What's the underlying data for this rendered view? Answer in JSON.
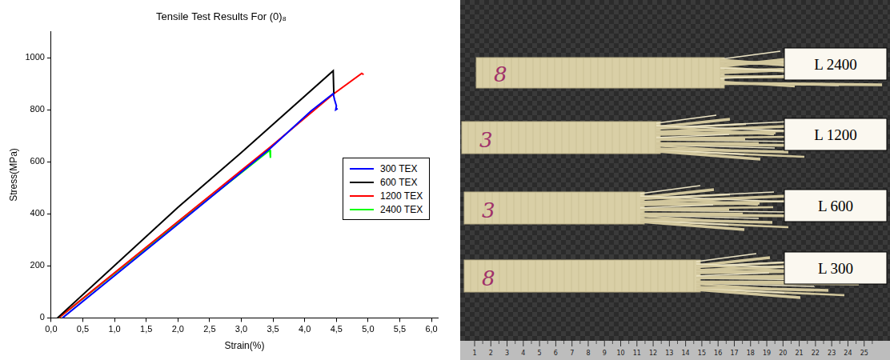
{
  "chart_data": {
    "type": "line",
    "title": "Tensile Test Results For (0)₈",
    "x_label": "Strain(%)",
    "y_label": "Stress(MPa)",
    "xlim": [
      0,
      6.1
    ],
    "ylim": [
      0,
      1100
    ],
    "xticks": [
      {
        "value": 0,
        "label": "0,0"
      },
      {
        "value": 0.5,
        "label": "0,5"
      },
      {
        "value": 1,
        "label": "1,0"
      },
      {
        "value": 1.5,
        "label": "1,5"
      },
      {
        "value": 2,
        "label": "2,0"
      },
      {
        "value": 2.5,
        "label": "2,5"
      },
      {
        "value": 3,
        "label": "3,0"
      },
      {
        "value": 3.5,
        "label": "3,5"
      },
      {
        "value": 4,
        "label": "4,0"
      },
      {
        "value": 4.5,
        "label": "4,5"
      },
      {
        "value": 5,
        "label": "5,0"
      },
      {
        "value": 5.5,
        "label": "5,5"
      },
      {
        "value": 6,
        "label": "6,0"
      }
    ],
    "yticks": [
      0,
      200,
      400,
      600,
      800,
      1000
    ],
    "grid": false,
    "legend": "right",
    "series": [
      {
        "name": "300 TEX",
        "color": "#0000ff",
        "x": [
          0.18,
          2,
          3.45,
          4.1,
          4.45,
          4.47,
          4.5,
          4.49,
          4.52
        ],
        "values": [
          0,
          360,
          650,
          795,
          862,
          840,
          815,
          800,
          805
        ]
      },
      {
        "name": "600 TEX",
        "color": "#000000",
        "x": [
          0.1,
          2,
          3,
          4.45,
          4.46
        ],
        "values": [
          0,
          425,
          635,
          950,
          860
        ]
      },
      {
        "name": "1200 TEX",
        "color": "#ff0000",
        "x": [
          0.12,
          2,
          3.45,
          4.45,
          4.9,
          4.93
        ],
        "values": [
          0,
          370,
          655,
          860,
          940,
          935
        ]
      },
      {
        "name": "2400 TEX",
        "color": "#00ff00",
        "x": [
          0.12,
          2,
          3.45,
          3.46
        ],
        "values": [
          0,
          365,
          645,
          615
        ]
      }
    ]
  },
  "photo": {
    "specimens": [
      {
        "label": "L 2400",
        "mark": "8"
      },
      {
        "label": "L 1200",
        "mark": "3"
      },
      {
        "label": "L 600",
        "mark": "3"
      },
      {
        "label": "L 300",
        "mark": "8"
      }
    ],
    "ruler": {
      "labels": [
        1,
        2,
        3,
        4,
        5,
        6,
        7,
        8,
        9,
        10,
        11,
        12,
        13,
        14,
        15,
        16,
        17,
        18,
        19,
        20,
        21,
        22,
        23,
        24,
        25
      ]
    }
  }
}
